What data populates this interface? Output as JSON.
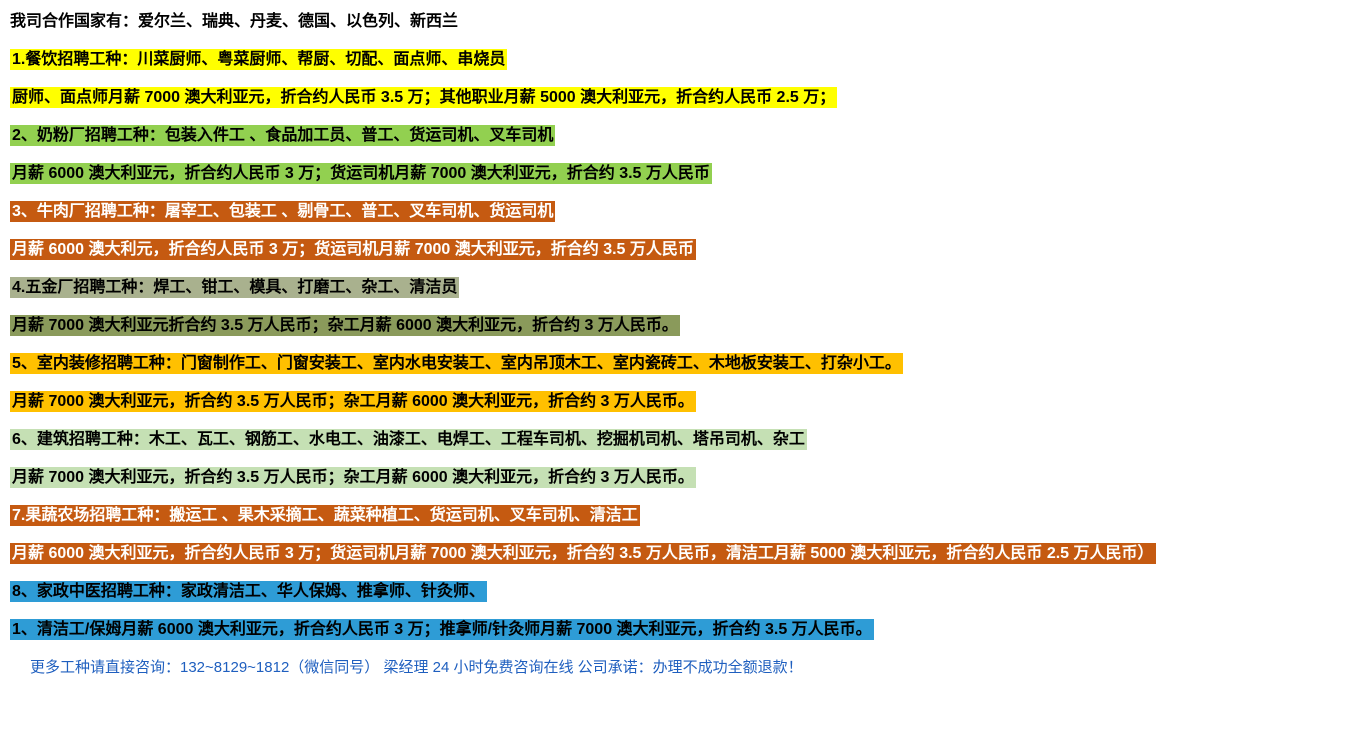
{
  "header": "我司合作国家有：爱尔兰、瑞典、丹麦、德国、以色列、新西兰",
  "lines": [
    {
      "text": "1.餐饮招聘工种：川菜厨师、粤菜厨师、帮厨、切配、面点师、串烧员",
      "bg": "#ffff00",
      "fg": "#000000"
    },
    {
      "text": "厨师、面点师月薪 7000 澳大利亚元，折合约人民币 3.5 万；其他职业月薪 5000 澳大利亚元，折合约人民币 2.5 万；",
      "bg": "#ffff00",
      "fg": "#000000"
    },
    {
      "text": "2、奶粉厂招聘工种：包装入件工 、食品加工员、普工、货运司机、叉车司机",
      "bg": "#92d050",
      "fg": "#000000"
    },
    {
      "text": "月薪 6000 澳大利亚元，折合约人民币 3 万；货运司机月薪 7000 澳大利亚元，折合约 3.5 万人民币",
      "bg": "#92d050",
      "fg": "#000000"
    },
    {
      "text": "3、牛肉厂招聘工种：屠宰工、包装工 、剔骨工、普工、叉车司机、货运司机",
      "bg": "#c55a11",
      "fg": "#ffffff"
    },
    {
      "text": "月薪 6000 澳大利元，折合约人民币 3 万；货运司机月薪 7000 澳大利亚元，折合约 3.5 万人民币",
      "bg": "#c55a11",
      "fg": "#ffffff"
    },
    {
      "text": "4.五金厂招聘工种：焊工、钳工、模具、打磨工、杂工、清洁员",
      "bg": "#a9b18e",
      "fg": "#000000"
    },
    {
      "text": "月薪 7000 澳大利亚元折合约 3.5 万人民币；杂工月薪 6000 澳大利亚元，折合约 3 万人民币。",
      "bg": "#8a9a5b",
      "fg": "#000000"
    },
    {
      "text": "5、室内装修招聘工种：门窗制作工、门窗安装工、室内水电安装工、室内吊顶木工、室内瓷砖工、木地板安装工、打杂小工。",
      "bg": "#ffc000",
      "fg": "#000000"
    },
    {
      "text": "月薪 7000 澳大利亚元，折合约 3.5 万人民币；杂工月薪 6000 澳大利亚元，折合约 3 万人民币。",
      "bg": "#ffc000",
      "fg": "#000000"
    },
    {
      "text": "6、建筑招聘工种：木工、瓦工、钢筋工、水电工、油漆工、电焊工、工程车司机、挖掘机司机、塔吊司机、杂工",
      "bg": "#c5e0b4",
      "fg": "#000000"
    },
    {
      "text": "月薪 7000 澳大利亚元，折合约 3.5 万人民币；杂工月薪 6000 澳大利亚元，折合约 3 万人民币。",
      "bg": "#c5e0b4",
      "fg": "#000000"
    },
    {
      "text": "7.果蔬农场招聘工种：搬运工 、果木采摘工、蔬菜种植工、货运司机、叉车司机、清洁工",
      "bg": "#c55a11",
      "fg": "#ffffff"
    },
    {
      "text": "月薪 6000 澳大利亚元，折合约人民币 3 万；货运司机月薪 7000 澳大利亚元，折合约 3.5 万人民币，清洁工月薪 5000 澳大利亚元，折合约人民币 2.5 万人民币）",
      "bg": "#c55a11",
      "fg": "#ffffff"
    },
    {
      "text": "8、家政中医招聘工种：家政清洁工、华人保姆、推拿师、针灸师、",
      "bg": "#2e9cd6",
      "fg": "#000000"
    },
    {
      "text": "1、清洁工/保姆月薪 6000 澳大利亚元，折合约人民币 3 万；推拿师/针灸师月薪 7000 澳大利亚元，折合约 3.5 万人民币。",
      "bg": "#2e9cd6",
      "fg": "#000000"
    }
  ],
  "footer": "更多工种请直接咨询：132~8129~1812（微信同号）  梁经理  24 小时免费咨询在线  公司承诺：办理不成功全额退款！"
}
